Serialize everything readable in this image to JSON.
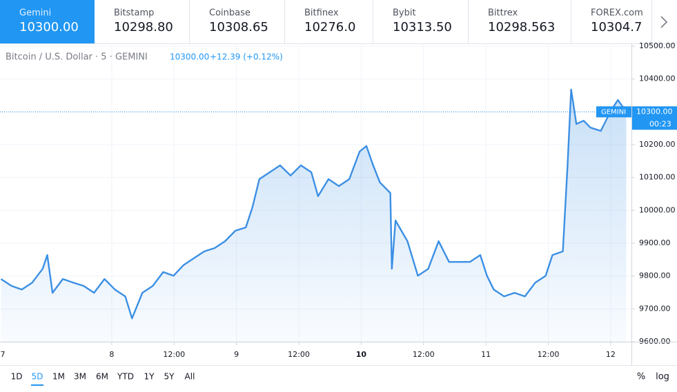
{
  "tabs": [
    {
      "name": "Gemini",
      "price": "10300.00",
      "active": true
    },
    {
      "name": "Bitstamp",
      "price": "10298.80"
    },
    {
      "name": "Coinbase",
      "price": "10308.65"
    },
    {
      "name": "Bitfinex",
      "price": "10276.0"
    },
    {
      "name": "Bybit",
      "price": "10313.50"
    },
    {
      "name": "Bittrex",
      "price": "10298.563"
    },
    {
      "name": "FOREX.com",
      "price": "10304.7"
    }
  ],
  "chart_data": {
    "type": "area",
    "title": "Bitcoin / U.S. Dollar · 5 · GEMINI",
    "last_value": "10300.00",
    "change": "+12.39 (+0.12%)",
    "price_line": {
      "value": 10300,
      "label": "10300.00",
      "exchange": "GEMINI",
      "countdown": "00:23"
    },
    "x": [
      2.7,
      4.7,
      6.7,
      8.7,
      10.7,
      11.6,
      12.6,
      14.6,
      16.6,
      18.6,
      20.6,
      22.6,
      24.6,
      26.6,
      27.9,
      29.9,
      31.9,
      33.9,
      35.9,
      37.8,
      39.8,
      41.8,
      43.8,
      45.8,
      47.8,
      49.8,
      51.1,
      52.4,
      54.4,
      56.4,
      58.4,
      60.4,
      62.4,
      63.7,
      65.7,
      67.7,
      69.7,
      71.7,
      73.0,
      74.3,
      75.6,
      77.6,
      77.9,
      78.6,
      80.9,
      82.9,
      84.9,
      86.9,
      88.9,
      90.9,
      92.9,
      94.9,
      96.2,
      97.5,
      99.5,
      101.5,
      103.5,
      105.5,
      107.5,
      108.8,
      110.8,
      111.7,
      112.4,
      113.4,
      114.8,
      116.1,
      118.1,
      120.1,
      121.4,
      123.0
    ],
    "series": [
      {
        "name": "BTCUSD",
        "color": "#3b8fe4",
        "values": [
          9791,
          9770,
          9759,
          9780,
          9822,
          9864,
          9749,
          9791,
          9780,
          9770,
          9749,
          9791,
          9759,
          9738,
          9671,
          9749,
          9770,
          9812,
          9801,
          9833,
          9854,
          9875,
          9885,
          9906,
          9938,
          9948,
          10011,
          10095,
          10116,
          10137,
          10106,
          10137,
          10116,
          10043,
          10095,
          10074,
          10095,
          10179,
          10196,
          10137,
          10085,
          10053,
          9822,
          9969,
          9906,
          9801,
          9822,
          9906,
          9843,
          9843,
          9843,
          9864,
          9801,
          9759,
          9738,
          9749,
          9738,
          9780,
          9801,
          9864,
          9875,
          10137,
          10368,
          10263,
          10273,
          10252,
          10242,
          10305,
          10336,
          10300
        ]
      }
    ],
    "xlim": [
      2.5,
      124
    ],
    "xticks": [
      {
        "value": 0,
        "label": "7"
      },
      {
        "value": 24,
        "label": "8"
      },
      {
        "value": 36,
        "label": "12:00"
      },
      {
        "value": 48,
        "label": "9"
      },
      {
        "value": 60,
        "label": "12:00"
      },
      {
        "value": 72,
        "label": "10",
        "bold": true
      },
      {
        "value": 84,
        "label": "12:00"
      },
      {
        "value": 96,
        "label": "11"
      },
      {
        "value": 108,
        "label": "12:00"
      },
      {
        "value": 120,
        "label": "12"
      }
    ],
    "ylim": [
      9600,
      10500
    ],
    "yticks": [
      {
        "value": 9600,
        "label": "9600.00"
      },
      {
        "value": 9700,
        "label": "9700.00"
      },
      {
        "value": 9800,
        "label": "9800.00"
      },
      {
        "value": 9900,
        "label": "9900.00"
      },
      {
        "value": 10000,
        "label": "10000.00"
      },
      {
        "value": 10100,
        "label": "10100.00"
      },
      {
        "value": 10200,
        "label": "10200.00"
      },
      {
        "value": 10300,
        "label": "10300.00"
      },
      {
        "value": 10400,
        "label": "10400.00"
      },
      {
        "value": 10500,
        "label": "10500.00"
      }
    ],
    "grid": true
  },
  "ranges": [
    {
      "label": "1D"
    },
    {
      "label": "5D",
      "active": true
    },
    {
      "label": "1M"
    },
    {
      "label": "3M"
    },
    {
      "label": "6M"
    },
    {
      "label": "YTD"
    },
    {
      "label": "1Y"
    },
    {
      "label": "5Y"
    },
    {
      "label": "All"
    }
  ],
  "scale_options": [
    "%",
    "log"
  ]
}
